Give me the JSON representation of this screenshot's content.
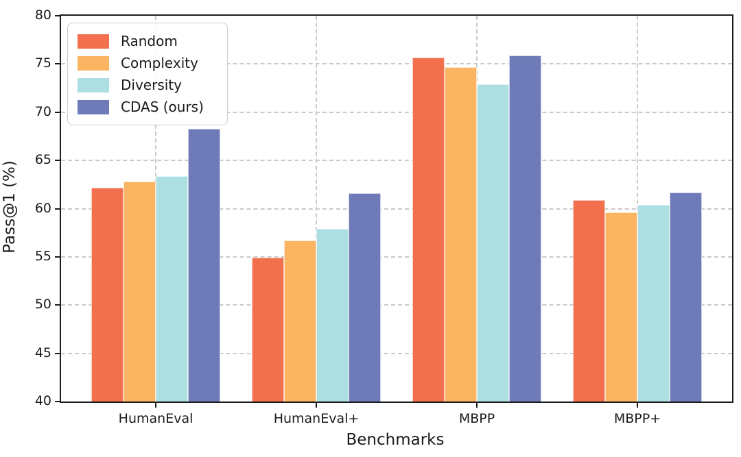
{
  "chart_data": {
    "type": "bar",
    "title": "",
    "xlabel": "Benchmarks",
    "ylabel": "Pass@1 (%)",
    "categories": [
      "HumanEval",
      "HumanEval+",
      "MBPP",
      "MBPP+"
    ],
    "series": [
      {
        "name": "Random",
        "color": "#F2704E",
        "values": [
          62.2,
          54.9,
          75.7,
          60.9
        ]
      },
      {
        "name": "Complexity",
        "color": "#FBB461",
        "values": [
          62.8,
          56.7,
          74.7,
          59.6
        ]
      },
      {
        "name": "Diversity",
        "color": "#ABDFE1",
        "values": [
          63.4,
          57.9,
          72.9,
          60.4
        ]
      },
      {
        "name": "CDAS (ours)",
        "color": "#6F7BB8",
        "values": [
          68.3,
          61.6,
          75.9,
          61.7
        ]
      }
    ],
    "ylim": [
      40,
      80
    ],
    "ytick_step": 5,
    "grid": true,
    "grid_style": "dashed",
    "legend_position": "upper-left",
    "spine_color": "#1c1c1c",
    "grid_color": "#c9c9c9"
  }
}
